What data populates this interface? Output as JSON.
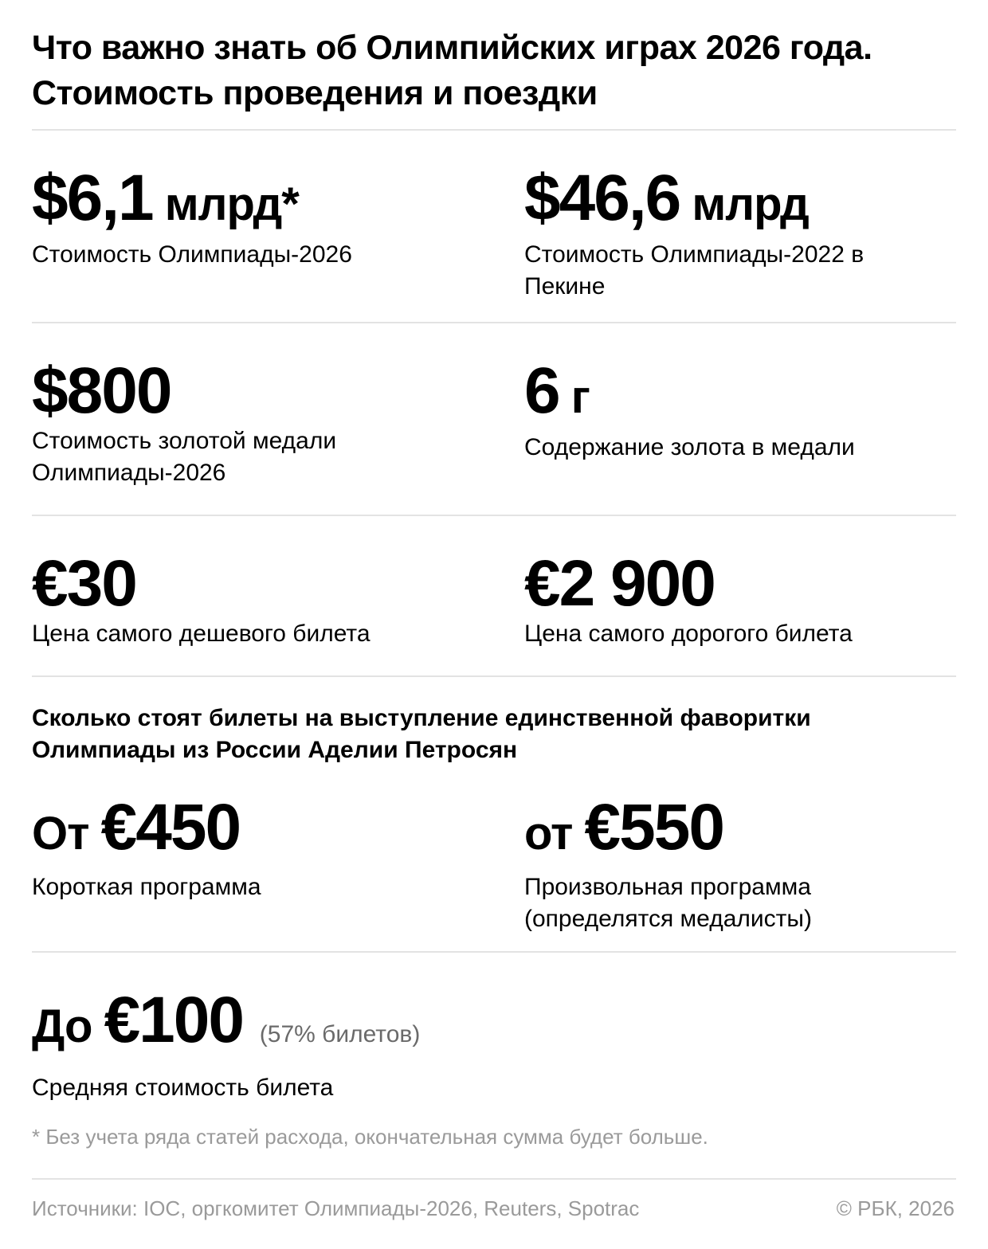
{
  "title": "Что важно знать об Олимпийских играх 2026 года. Стоимость проведения и поездки",
  "stats": [
    {
      "value": "$6,1",
      "unit": " млрд*",
      "desc": "Стоимость Олимпиады-2026"
    },
    {
      "value": "$46,6",
      "unit": " млрд",
      "desc": "Стоимость Олимпиады-2022 в Пекине"
    },
    {
      "value": "$800",
      "desc": "Стоимость золотой медали Олимпиады-2026"
    },
    {
      "value": "6",
      "unit": " г",
      "desc": "Содержание золота в медали"
    },
    {
      "value": "€30",
      "desc": "Цена самого дешевого билета"
    },
    {
      "value": "€2 900",
      "desc": "Цена самого дорогого билета"
    }
  ],
  "subheading": "Сколько стоят билеты на выступление единственной фаворитки Олимпиады из России Аделии Петросян",
  "petrosyan": [
    {
      "prefix": "От ",
      "value": "€450",
      "desc": "Короткая программа"
    },
    {
      "prefix": "от ",
      "value": "€550",
      "desc": "Произвольная программа (определятся медалисты)"
    }
  ],
  "average": {
    "prefix": "До ",
    "value": "€100",
    "note": "(57% билетов)",
    "desc": "Средняя стоимость билета"
  },
  "footnote": "* Без учета ряда статей расхода, окончательная сумма будет больше.",
  "sources": "Источники: IOC, оргкомитет Олимпиады-2026, Reuters, Spotrac",
  "copyright": "© РБК, 2026"
}
